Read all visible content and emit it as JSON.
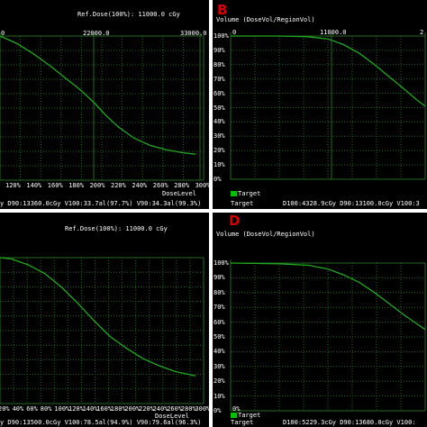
{
  "colors": {
    "curve": "#1faa1f",
    "grid": "#206a20",
    "background": "#000000",
    "text": "#ffffff",
    "letter": "#d80000"
  },
  "panels": [
    {
      "id": "A",
      "letter": "",
      "ylabel": "",
      "ref_dose": "Ref.Dose(100%):  11000.0 cGy",
      "top_ticks": [
        "0",
        "22000.0",
        "33000.0"
      ],
      "x_ticks": [
        "120%",
        "140%",
        "160%",
        "180%",
        "200%",
        "220%",
        "240%",
        "260%",
        "280%",
        "300%"
      ],
      "y_ticks": [],
      "xlabel": "DoseLevel",
      "legend": "",
      "stats_label": "",
      "stats": "y D90:13360.0cGy V100:33.7al(97.7%) V90:34.3al(99.3%)"
    },
    {
      "id": "B",
      "letter": "B",
      "ylabel": "Volume (DoseVol/RegionVol)",
      "ref_dose": "",
      "top_ticks": [
        "0",
        "11000.0",
        "2"
      ],
      "x_ticks": [],
      "y_ticks": [
        "100%",
        "90%",
        "80%",
        "70%",
        "60%",
        "50%",
        "40%",
        "30%",
        "20%",
        "10%",
        "0%"
      ],
      "xlabel": "",
      "legend": "Target",
      "stats_label": "Target",
      "stats": "D100:4328.9cGy D90:13100.0cGy V100:3"
    },
    {
      "id": "C",
      "letter": "",
      "ylabel": "",
      "ref_dose": "Ref.Dose(100%):  11000.0 cGy",
      "top_ticks": [],
      "x_ticks": [
        "20%",
        "40%",
        "60%",
        "80%",
        "100%",
        "120%",
        "140%",
        "160%",
        "180%",
        "200%",
        "220%",
        "240%",
        "260%",
        "280%",
        "300%"
      ],
      "y_ticks": [],
      "xlabel": "DoseLevel",
      "legend": "",
      "stats_label": "",
      "stats": "y D90:13500.0cGy V100:78.5al(94.9%) V90:79.6al(96.3%)"
    },
    {
      "id": "D",
      "letter": "D",
      "ylabel": "Volume (DoseVol/RegionVol)",
      "ref_dose": "",
      "top_ticks": [],
      "x_ticks": [
        "0%"
      ],
      "y_ticks": [
        "100%",
        "90%",
        "80%",
        "70%",
        "60%",
        "50%",
        "40%",
        "30%",
        "20%",
        "10%",
        "0%"
      ],
      "xlabel": "",
      "legend": "Target",
      "stats_label": "Target",
      "stats": "D100:5229.3cGy D90:13680.0cGy V100:"
    }
  ],
  "chart_data": [
    {
      "type": "line",
      "panel": "A",
      "series": [
        {
          "x": [
            0.0,
            0.08,
            0.16,
            0.24,
            0.32,
            0.4,
            0.46,
            0.52,
            0.58,
            0.66,
            0.74,
            0.82,
            0.9,
            0.96
          ],
          "y": [
            100,
            95,
            88,
            80,
            71,
            62,
            54,
            45,
            37,
            29,
            24,
            21,
            19,
            18
          ]
        }
      ]
    },
    {
      "type": "line",
      "panel": "B",
      "series": [
        {
          "x": [
            0.0,
            0.25,
            0.4,
            0.5,
            0.58,
            0.66,
            0.74,
            0.82,
            0.9,
            0.96,
            1.0
          ],
          "y": [
            100,
            100,
            99.5,
            98,
            94,
            88,
            80,
            71,
            62,
            55,
            51
          ]
        }
      ]
    },
    {
      "type": "line",
      "panel": "C",
      "series": [
        {
          "x": [
            0.0,
            0.06,
            0.14,
            0.22,
            0.3,
            0.38,
            0.46,
            0.54,
            0.62,
            0.7,
            0.78,
            0.86,
            0.96
          ],
          "y": [
            100,
            99,
            95,
            89,
            80,
            69,
            57,
            46,
            38,
            31,
            26,
            22,
            19
          ]
        }
      ]
    },
    {
      "type": "line",
      "panel": "D",
      "series": [
        {
          "x": [
            0.0,
            0.25,
            0.4,
            0.5,
            0.58,
            0.66,
            0.74,
            0.82,
            0.9,
            1.0
          ],
          "y": [
            100,
            99.5,
            98.5,
            96,
            92,
            87,
            80,
            72,
            64,
            55
          ]
        }
      ]
    }
  ]
}
